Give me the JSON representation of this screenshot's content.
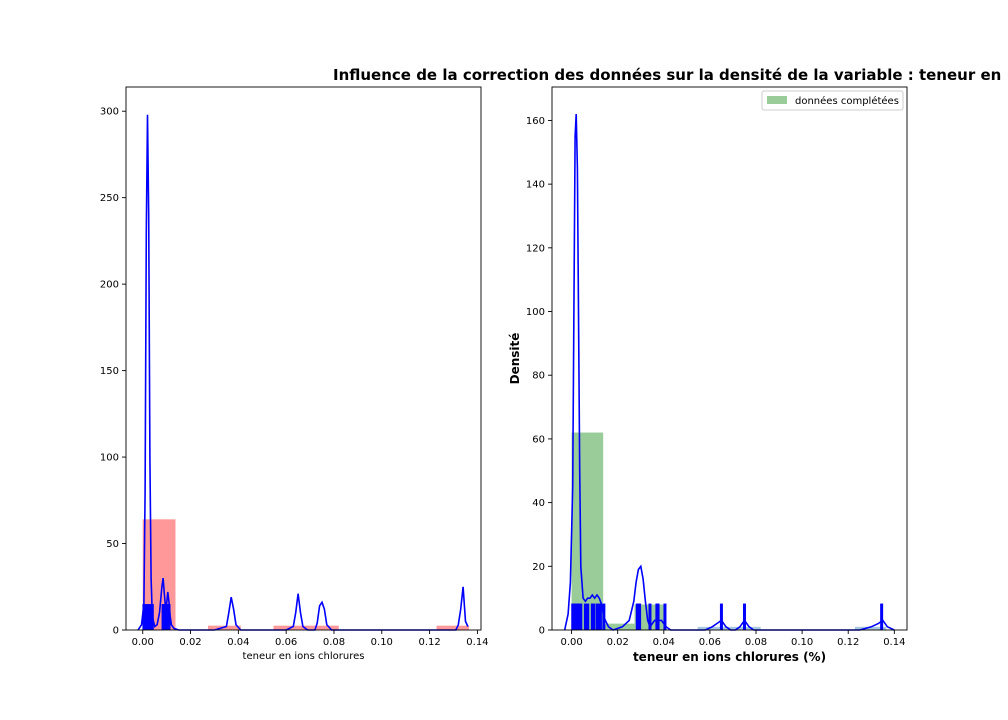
{
  "title": "Influence de la correction des données sur la densité de la variable : teneur en",
  "colors": {
    "raw_hist": "#ff9999",
    "completed_hist": "#99cc99",
    "kde": "#0000ff",
    "rug": "#0000ff",
    "small_bins": "#a8c8e0"
  },
  "chart_data": [
    {
      "type": "bar",
      "xlabel": "teneur en ions chlorures",
      "ylabel": "",
      "xlim": [
        -0.007,
        0.1415
      ],
      "ylim": [
        0,
        314
      ],
      "xticks": [
        "0.00",
        "0.02",
        "0.04",
        "0.06",
        "0.08",
        "0.10",
        "0.12",
        "0.14"
      ],
      "xtick_values": [
        0,
        0.02,
        0.04,
        0.06,
        0.08,
        0.1,
        0.12,
        0.14
      ],
      "yticks": [
        "0",
        "50",
        "100",
        "150",
        "200",
        "250",
        "300"
      ],
      "ytick_values": [
        0,
        50,
        100,
        150,
        200,
        250,
        300
      ],
      "histogram": [
        {
          "x0": 0.0,
          "x1": 0.0137,
          "height": 64
        },
        {
          "x0": 0.0273,
          "x1": 0.041,
          "height": 2.5
        },
        {
          "x0": 0.0547,
          "x1": 0.0683,
          "height": 2.5
        },
        {
          "x0": 0.0683,
          "x1": 0.082,
          "height": 2.5
        },
        {
          "x0": 0.1229,
          "x1": 0.1365,
          "height": 2.5
        }
      ],
      "kde": {
        "x": [
          -0.002,
          -0.0005,
          0.0005,
          0.001,
          0.0015,
          0.002,
          0.0025,
          0.003,
          0.0035,
          0.004,
          0.005,
          0.006,
          0.007,
          0.008,
          0.0085,
          0.009,
          0.0095,
          0.01,
          0.0105,
          0.011,
          0.0115,
          0.012,
          0.013,
          0.015,
          0.03,
          0.035,
          0.036,
          0.037,
          0.038,
          0.039,
          0.041,
          0.06,
          0.063,
          0.064,
          0.065,
          0.066,
          0.067,
          0.069,
          0.072,
          0.073,
          0.074,
          0.075,
          0.076,
          0.077,
          0.079,
          0.12,
          0.131,
          0.132,
          0.133,
          0.134,
          0.135,
          0.136
        ],
        "y": [
          0,
          3,
          15,
          80,
          230,
          298,
          240,
          100,
          30,
          8,
          2,
          3,
          10,
          25,
          30,
          22,
          14,
          15,
          22,
          16,
          8,
          3,
          1,
          0,
          0,
          2,
          10,
          19,
          12,
          3,
          0,
          0,
          2,
          10,
          21,
          10,
          2,
          0,
          0,
          4,
          14,
          16,
          12,
          3,
          0,
          0,
          0,
          3,
          12,
          25,
          5,
          2
        ]
      },
      "rug_height": 15,
      "rug": [
        0.0005,
        0.0015,
        0.0025,
        0.0035,
        0.004,
        0.0085,
        0.0095,
        0.0105,
        0.011
      ]
    },
    {
      "type": "bar",
      "xlabel": "teneur en ions chlorures (%)",
      "ylabel": "Densité",
      "xlim": [
        -0.0085,
        0.1455
      ],
      "ylim": [
        0,
        170.5
      ],
      "xticks": [
        "0.00",
        "0.02",
        "0.04",
        "0.06",
        "0.08",
        "0.10",
        "0.12",
        "0.14"
      ],
      "xtick_values": [
        0,
        0.02,
        0.04,
        0.06,
        0.08,
        0.1,
        0.12,
        0.14
      ],
      "yticks": [
        "0",
        "20",
        "40",
        "60",
        "80",
        "100",
        "120",
        "140",
        "160"
      ],
      "ytick_values": [
        0,
        20,
        40,
        60,
        80,
        100,
        120,
        140,
        160
      ],
      "legend": {
        "label": "données complétées",
        "position": "top-right"
      },
      "histogram": [
        {
          "x0": 0.0,
          "x1": 0.0137,
          "height": 62,
          "color": "green"
        },
        {
          "x0": 0.0137,
          "x1": 0.0273,
          "height": 2,
          "color": "green"
        },
        {
          "x0": 0.0273,
          "x1": 0.041,
          "height": 8,
          "color": "green"
        },
        {
          "x0": 0.0547,
          "x1": 0.0683,
          "height": 1,
          "color": "blue"
        },
        {
          "x0": 0.0683,
          "x1": 0.082,
          "height": 1,
          "color": "blue"
        },
        {
          "x0": 0.1229,
          "x1": 0.1365,
          "height": 1,
          "color": "blue"
        }
      ],
      "kde": {
        "x": [
          -0.003,
          -0.0015,
          -0.0005,
          0.0005,
          0.001,
          0.0015,
          0.002,
          0.0025,
          0.003,
          0.0035,
          0.004,
          0.005,
          0.006,
          0.007,
          0.008,
          0.009,
          0.01,
          0.011,
          0.012,
          0.013,
          0.014,
          0.016,
          0.018,
          0.022,
          0.025,
          0.027,
          0.028,
          0.029,
          0.03,
          0.031,
          0.032,
          0.033,
          0.034,
          0.035,
          0.036,
          0.037,
          0.038,
          0.039,
          0.04,
          0.041,
          0.043,
          0.05,
          0.058,
          0.061,
          0.063,
          0.065,
          0.067,
          0.069,
          0.071,
          0.073,
          0.075,
          0.077,
          0.079,
          0.082,
          0.125,
          0.13,
          0.133,
          0.135,
          0.137,
          0.14
        ],
        "y": [
          0,
          5,
          15,
          45,
          100,
          155,
          162,
          145,
          100,
          50,
          20,
          10,
          9,
          10,
          10,
          11,
          10,
          11,
          10,
          8,
          4,
          1,
          0,
          1,
          3,
          9,
          15,
          19,
          20,
          16,
          9,
          3,
          1,
          2,
          3,
          3,
          3,
          3,
          2,
          1,
          0,
          0,
          0,
          1,
          2,
          3,
          1,
          0,
          0,
          1,
          3,
          1,
          0,
          0,
          0,
          1,
          2,
          3,
          1,
          0
        ]
      },
      "rug_height": 8.3,
      "rug": [
        0.0005,
        0.001,
        0.0015,
        0.002,
        0.0025,
        0.003,
        0.0035,
        0.004,
        0.006,
        0.007,
        0.009,
        0.0095,
        0.011,
        0.012,
        0.0125,
        0.014,
        0.0285,
        0.029,
        0.0295,
        0.034,
        0.037,
        0.0375,
        0.0405,
        0.065,
        0.075,
        0.1345
      ]
    }
  ]
}
